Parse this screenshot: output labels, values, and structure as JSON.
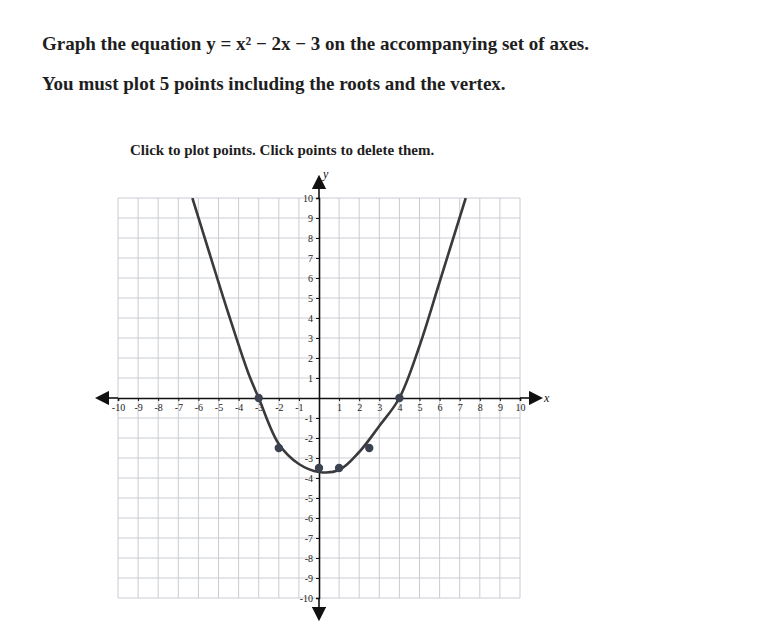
{
  "chart_data": {
    "type": "line",
    "title": "Graph the equation y = x² − 2x − 3 on the accompanying set of axes.",
    "subtitle": "You must plot 5 points including the roots and the vertex.",
    "annotation": "Click to plot points. Click points to delete them.",
    "x_label": "x",
    "y_label": "y",
    "xlim": [
      -10,
      10
    ],
    "ylim": [
      -10,
      10
    ],
    "xticks": [
      -10,
      -9,
      -8,
      -7,
      -6,
      -5,
      -4,
      -3,
      -2,
      -1,
      1,
      2,
      3,
      4,
      5,
      6,
      7,
      8,
      9,
      10
    ],
    "yticks": [
      10,
      9,
      8,
      7,
      6,
      5,
      4,
      3,
      2,
      1,
      -1,
      -2,
      -3,
      -4,
      -5,
      -6,
      -7,
      -8,
      -9,
      -10
    ],
    "grid": true,
    "series": [
      {
        "type": "line",
        "color": "#3a3a3a",
        "line_style": "solid",
        "x": [
          -6.3,
          -5.5,
          -4.5,
          -3.5,
          -3,
          -2,
          -1,
          0,
          1,
          2,
          3,
          4,
          5,
          6,
          7.3
        ],
        "values": [
          10,
          7.4,
          4.2,
          1.2,
          0,
          -2.3,
          -3.3,
          -3.7,
          -3.6,
          -2.7,
          -1.4,
          0,
          2.6,
          5.8,
          10
        ]
      },
      {
        "type": "scatter",
        "color": "#3c4250",
        "marker": "circle",
        "x": [
          -3,
          -2,
          0,
          1,
          2.5,
          4
        ],
        "values": [
          0,
          -2.5,
          -3.5,
          -3.5,
          -2.5,
          0
        ]
      }
    ]
  }
}
